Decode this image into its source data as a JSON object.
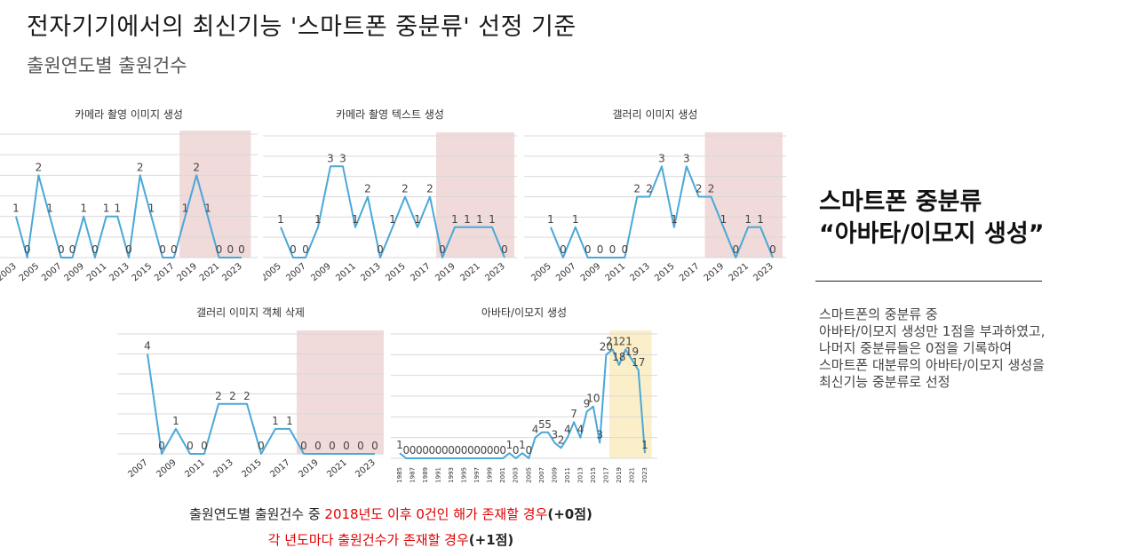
{
  "header": {
    "title": "전자기기에서의 최신기능 '스마트폰 중분류' 선정 기준",
    "subtitle": "출원연도별 출원건수"
  },
  "chart_data": [
    {
      "id": "c1",
      "type": "line",
      "title": "카메라 촬영 이미지 생성",
      "x": [
        2003,
        2004,
        2005,
        2006,
        2007,
        2008,
        2009,
        2010,
        2011,
        2012,
        2013,
        2014,
        2015,
        2016,
        2017,
        2018,
        2019,
        2020,
        2021,
        2022,
        2023
      ],
      "values": [
        1,
        0,
        2,
        1,
        0,
        0,
        1,
        0,
        1,
        1,
        0,
        2,
        1,
        0,
        0,
        1,
        2,
        1,
        0,
        0,
        0
      ],
      "data_labels": [
        "1",
        "0",
        "2",
        "1",
        "0",
        "0",
        "1",
        "0",
        "1",
        "1",
        "0",
        "2",
        "1",
        "0",
        "0",
        "1",
        "2",
        "1",
        "0",
        "0",
        "0"
      ],
      "tick_labels": [
        "2003",
        "2005",
        "2007",
        "2009",
        "2011",
        "2013",
        "2015",
        "2017",
        "2019",
        "2021",
        "2023"
      ],
      "ylim": [
        0,
        3
      ],
      "highlight": {
        "from": 2018,
        "to": 2023,
        "color": "#f0dada"
      },
      "line_color": "#4aa8d8"
    },
    {
      "id": "c2",
      "type": "line",
      "title": "카메라 촬영 텍스트 생성",
      "x": [
        2005,
        2006,
        2007,
        2008,
        2009,
        2010,
        2011,
        2012,
        2013,
        2014,
        2015,
        2016,
        2017,
        2018,
        2019,
        2020,
        2021,
        2022,
        2023
      ],
      "values": [
        1,
        0,
        0,
        1,
        3,
        3,
        1,
        2,
        0,
        1,
        2,
        1,
        2,
        0,
        1,
        1,
        1,
        1,
        0
      ],
      "data_labels": [
        "1",
        "0",
        "0",
        "1",
        "3",
        "3",
        "1",
        "2",
        "0",
        "1",
        "2",
        "1",
        "2",
        "0",
        "1",
        "1",
        "1",
        "1",
        "0"
      ],
      "tick_labels": [
        "2005",
        "2007",
        "2009",
        "2011",
        "2013",
        "2015",
        "2017",
        "2019",
        "2021",
        "2023"
      ],
      "ylim": [
        0,
        4
      ],
      "highlight": {
        "from": 2018,
        "to": 2023,
        "color": "#f0dada"
      },
      "line_color": "#4aa8d8"
    },
    {
      "id": "c3",
      "type": "line",
      "title": "갤러리 이미지 생성",
      "x": [
        2005,
        2006,
        2007,
        2008,
        2009,
        2010,
        2011,
        2012,
        2013,
        2014,
        2015,
        2016,
        2017,
        2018,
        2019,
        2020,
        2021,
        2022,
        2023
      ],
      "values": [
        1,
        0,
        1,
        0,
        0,
        0,
        0,
        2,
        2,
        3,
        1,
        3,
        2,
        2,
        1,
        0,
        1,
        1,
        0
      ],
      "data_labels": [
        "1",
        "0",
        "1",
        "0",
        "0",
        "0",
        "0",
        "2",
        "2",
        "3",
        "1",
        "3",
        "2",
        "2",
        "1",
        "0",
        "1",
        "1",
        "0"
      ],
      "tick_labels": [
        "2005",
        "2007",
        "2009",
        "2011",
        "2013",
        "2015",
        "2017",
        "2019",
        "2021",
        "2023"
      ],
      "ylim": [
        0,
        4
      ],
      "highlight": {
        "from": 2018,
        "to": 2023,
        "color": "#f0dada"
      },
      "line_color": "#4aa8d8"
    },
    {
      "id": "c4",
      "type": "line",
      "title": "갤러리 이미지 객체 삭제",
      "x": [
        2007,
        2008,
        2009,
        2010,
        2011,
        2012,
        2013,
        2014,
        2015,
        2016,
        2017,
        2018,
        2019,
        2020,
        2021,
        2022,
        2023
      ],
      "values": [
        4,
        0,
        1,
        0,
        0,
        2,
        2,
        2,
        0,
        1,
        1,
        0,
        0,
        0,
        0,
        0,
        0
      ],
      "data_labels": [
        "4",
        "0",
        "1",
        "0",
        "0",
        "2",
        "2",
        "2",
        "0",
        "1",
        "1",
        "0",
        "0",
        "0",
        "0",
        "0",
        "0"
      ],
      "tick_labels": [
        "2007",
        "2009",
        "2011",
        "2013",
        "2015",
        "2017",
        "2019",
        "2021",
        "2023"
      ],
      "ylim": [
        0,
        4.8
      ],
      "highlight": {
        "from": 2018,
        "to": 2023,
        "color": "#f0dada"
      },
      "line_color": "#4aa8d8"
    },
    {
      "id": "c5",
      "type": "line",
      "title": "아바타/이모지 생성",
      "x": [
        1985,
        1986,
        1987,
        1988,
        1989,
        1990,
        1991,
        1992,
        1993,
        1994,
        1995,
        1996,
        1997,
        1998,
        1999,
        2000,
        2001,
        2002,
        2003,
        2004,
        2005,
        2006,
        2007,
        2008,
        2009,
        2010,
        2011,
        2012,
        2013,
        2014,
        2015,
        2016,
        2017,
        2018,
        2019,
        2020,
        2021,
        2022,
        2023
      ],
      "values": [
        1,
        0,
        0,
        0,
        0,
        0,
        0,
        0,
        0,
        0,
        0,
        0,
        0,
        0,
        0,
        0,
        0,
        1,
        0,
        1,
        0,
        4,
        5,
        5,
        3,
        2,
        4,
        7,
        4,
        9,
        10,
        3,
        20,
        21,
        18,
        21,
        19,
        17,
        1
      ],
      "data_labels": [
        "1",
        "0",
        "0",
        "0",
        "0",
        "0",
        "0",
        "0",
        "0",
        "0",
        "0",
        "0",
        "0",
        "0",
        "0",
        "0",
        "0",
        "1",
        "0",
        "1",
        "0",
        "4",
        "5",
        "5",
        "3",
        "2",
        "4",
        "7",
        "4",
        "9",
        "10",
        "3",
        "20",
        "21",
        "18",
        "21",
        "19",
        "17",
        "1"
      ],
      "tick_labels": [
        "1985",
        "1987",
        "1989",
        "1991",
        "1993",
        "1995",
        "1997",
        "1999",
        "2001",
        "2003",
        "2005",
        "2007",
        "2009",
        "2011",
        "2013",
        "2015",
        "2017",
        "2019",
        "2021",
        "2023"
      ],
      "ylim": [
        0,
        24
      ],
      "highlight": {
        "from": 2018,
        "to": 2023,
        "color": "#fbefc9"
      },
      "line_color": "#4aa8d8"
    }
  ],
  "side": {
    "heading_line1": "스마트폰 중분류",
    "heading_line2": "“아바타/이모지 생성”",
    "body": [
      "스마트폰의 중분류 중",
      "아바타/이모지 생성만 1점을 부과하였고,",
      " 나머지 중분류들은 0점을 기록하여",
      "스마트폰 대분류의 아바타/이모지 생성을",
      "최신기능 중분류로 선정"
    ]
  },
  "footnote": {
    "line1_prefix": "출원연도별 출원건수 중 ",
    "line1_red": "2018년도 이후 0건인 해가 존재할 경우",
    "line1_suffix": "(+0점)",
    "line2_red": "각 년도마다 출원건수가 존재할 경우",
    "line2_suffix": "(+1점)"
  }
}
